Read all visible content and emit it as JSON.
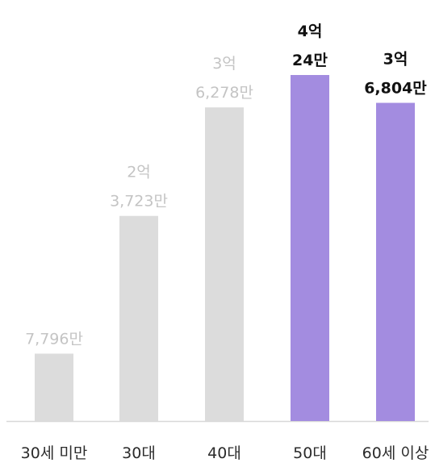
{
  "chart_data": {
    "type": "bar",
    "title": "",
    "xlabel": "",
    "ylabel": "",
    "categories": [
      "30세 미만",
      "30대",
      "40대",
      "50대",
      "60세 이상"
    ],
    "values": [
      7796,
      23723,
      36278,
      40024,
      36804
    ],
    "value_unit": "만원",
    "data_labels": [
      [
        "7,796만"
      ],
      [
        "2억",
        "3,723만"
      ],
      [
        "3억",
        "6,278만"
      ],
      [
        "4억",
        "24만"
      ],
      [
        "3억",
        "6,804만"
      ]
    ],
    "highlighted": [
      false,
      false,
      false,
      true,
      true
    ],
    "ylim": [
      0,
      40024
    ],
    "grid": false,
    "colors": {
      "default_bar": "#dcdcdc",
      "highlight_bar": "#a38ce0",
      "axis": "#d8d8d8",
      "label_default": "#c4c4c4",
      "label_highlight": "#111111",
      "category_text": "#2b2b2b"
    }
  }
}
